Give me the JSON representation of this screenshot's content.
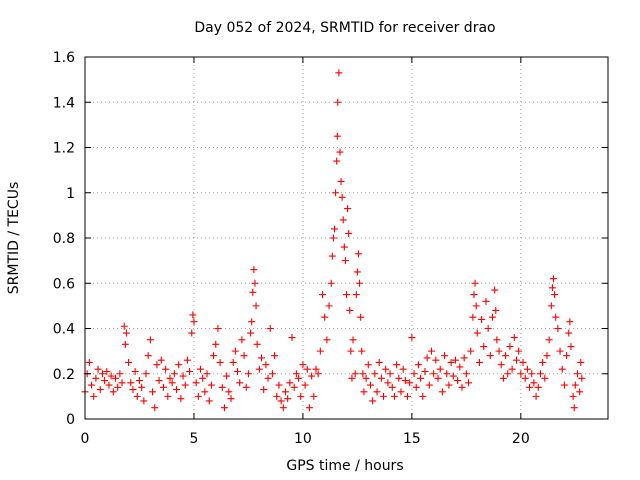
{
  "chart_data": {
    "type": "scatter",
    "title": "Day 052 of 2024, SRMTID for receiver drao",
    "xlabel": "GPS time / hours",
    "ylabel": "SRMTID / TECUs",
    "xlim": [
      0,
      24
    ],
    "ylim": [
      0,
      1.6
    ],
    "x_ticks": [
      0,
      5,
      10,
      15,
      20
    ],
    "y_ticks": [
      0,
      0.2,
      0.4,
      0.6,
      0.8,
      1,
      1.2,
      1.4,
      1.6
    ],
    "x_tick_labels": [
      "0",
      "5",
      "10",
      "15",
      "20"
    ],
    "y_tick_labels": [
      "0",
      "0.2",
      "0.4",
      "0.6",
      "0.8",
      "1",
      "1.2",
      "1.4",
      "1.6"
    ],
    "grid": true,
    "marker": "+",
    "point_color": "#ff0000",
    "series": [
      {
        "name": "SRMTID",
        "points": [
          [
            0.0,
            0.12
          ],
          [
            0.1,
            0.2
          ],
          [
            0.2,
            0.25
          ],
          [
            0.3,
            0.15
          ],
          [
            0.4,
            0.1
          ],
          [
            0.5,
            0.18
          ],
          [
            0.6,
            0.22
          ],
          [
            0.7,
            0.13
          ],
          [
            0.8,
            0.2
          ],
          [
            0.9,
            0.17
          ],
          [
            1.0,
            0.21
          ],
          [
            1.1,
            0.15
          ],
          [
            1.2,
            0.19
          ],
          [
            1.3,
            0.12
          ],
          [
            1.4,
            0.18
          ],
          [
            1.5,
            0.14
          ],
          [
            1.6,
            0.2
          ],
          [
            1.7,
            0.16
          ],
          [
            1.8,
            0.41
          ],
          [
            1.85,
            0.33
          ],
          [
            1.9,
            0.38
          ],
          [
            2.0,
            0.25
          ],
          [
            2.1,
            0.16
          ],
          [
            2.2,
            0.13
          ],
          [
            2.3,
            0.21
          ],
          [
            2.4,
            0.1
          ],
          [
            2.5,
            0.17
          ],
          [
            2.6,
            0.14
          ],
          [
            2.7,
            0.08
          ],
          [
            2.8,
            0.2
          ],
          [
            2.9,
            0.28
          ],
          [
            3.0,
            0.35
          ],
          [
            3.1,
            0.12
          ],
          [
            3.2,
            0.05
          ],
          [
            3.3,
            0.24
          ],
          [
            3.4,
            0.17
          ],
          [
            3.5,
            0.26
          ],
          [
            3.6,
            0.14
          ],
          [
            3.7,
            0.22
          ],
          [
            3.8,
            0.1
          ],
          [
            3.9,
            0.18
          ],
          [
            4.0,
            0.16
          ],
          [
            4.1,
            0.2
          ],
          [
            4.2,
            0.13
          ],
          [
            4.3,
            0.24
          ],
          [
            4.4,
            0.09
          ],
          [
            4.5,
            0.19
          ],
          [
            4.6,
            0.15
          ],
          [
            4.7,
            0.26
          ],
          [
            4.8,
            0.21
          ],
          [
            4.9,
            0.38
          ],
          [
            4.95,
            0.46
          ],
          [
            5.0,
            0.43
          ],
          [
            5.1,
            0.16
          ],
          [
            5.2,
            0.1
          ],
          [
            5.3,
            0.22
          ],
          [
            5.4,
            0.18
          ],
          [
            5.5,
            0.12
          ],
          [
            5.6,
            0.2
          ],
          [
            5.7,
            0.08
          ],
          [
            5.8,
            0.15
          ],
          [
            5.9,
            0.28
          ],
          [
            6.0,
            0.33
          ],
          [
            6.1,
            0.4
          ],
          [
            6.2,
            0.25
          ],
          [
            6.3,
            0.14
          ],
          [
            6.4,
            0.05
          ],
          [
            6.5,
            0.19
          ],
          [
            6.6,
            0.12
          ],
          [
            6.7,
            0.09
          ],
          [
            6.8,
            0.25
          ],
          [
            6.9,
            0.3
          ],
          [
            7.0,
            0.21
          ],
          [
            7.1,
            0.16
          ],
          [
            7.2,
            0.35
          ],
          [
            7.3,
            0.28
          ],
          [
            7.4,
            0.14
          ],
          [
            7.5,
            0.2
          ],
          [
            7.6,
            0.38
          ],
          [
            7.65,
            0.43
          ],
          [
            7.7,
            0.56
          ],
          [
            7.75,
            0.66
          ],
          [
            7.8,
            0.6
          ],
          [
            7.85,
            0.5
          ],
          [
            7.9,
            0.33
          ],
          [
            8.0,
            0.22
          ],
          [
            8.1,
            0.27
          ],
          [
            8.2,
            0.13
          ],
          [
            8.3,
            0.24
          ],
          [
            8.4,
            0.18
          ],
          [
            8.5,
            0.4
          ],
          [
            8.6,
            0.2
          ],
          [
            8.7,
            0.28
          ],
          [
            8.8,
            0.1
          ],
          [
            8.9,
            0.15
          ],
          [
            9.0,
            0.08
          ],
          [
            9.1,
            0.05
          ],
          [
            9.2,
            0.12
          ],
          [
            9.3,
            0.09
          ],
          [
            9.4,
            0.16
          ],
          [
            9.5,
            0.36
          ],
          [
            9.6,
            0.14
          ],
          [
            9.7,
            0.2
          ],
          [
            9.8,
            0.18
          ],
          [
            9.9,
            0.1
          ],
          [
            10.0,
            0.24
          ],
          [
            10.1,
            0.15
          ],
          [
            10.2,
            0.22
          ],
          [
            10.3,
            0.05
          ],
          [
            10.4,
            0.19
          ],
          [
            10.5,
            0.1
          ],
          [
            10.6,
            0.22
          ],
          [
            10.7,
            0.2
          ],
          [
            10.8,
            0.3
          ],
          [
            10.9,
            0.55
          ],
          [
            11.0,
            0.45
          ],
          [
            11.1,
            0.35
          ],
          [
            11.2,
            0.5
          ],
          [
            11.3,
            0.6
          ],
          [
            11.35,
            0.72
          ],
          [
            11.4,
            0.8
          ],
          [
            11.45,
            0.84
          ],
          [
            11.5,
            1.0
          ],
          [
            11.55,
            1.14
          ],
          [
            11.58,
            1.25
          ],
          [
            11.6,
            1.4
          ],
          [
            11.65,
            1.53
          ],
          [
            11.7,
            1.18
          ],
          [
            11.75,
            1.05
          ],
          [
            11.8,
            0.98
          ],
          [
            11.85,
            0.88
          ],
          [
            11.9,
            0.76
          ],
          [
            11.95,
            0.7
          ],
          [
            12.0,
            0.55
          ],
          [
            12.05,
            0.93
          ],
          [
            12.1,
            0.82
          ],
          [
            12.15,
            0.48
          ],
          [
            12.2,
            0.3
          ],
          [
            12.25,
            0.18
          ],
          [
            12.3,
            0.35
          ],
          [
            12.4,
            0.2
          ],
          [
            12.45,
            0.55
          ],
          [
            12.5,
            0.65
          ],
          [
            12.55,
            0.73
          ],
          [
            12.6,
            0.6
          ],
          [
            12.65,
            0.45
          ],
          [
            12.7,
            0.3
          ],
          [
            12.75,
            0.2
          ],
          [
            12.8,
            0.12
          ],
          [
            12.9,
            0.18
          ],
          [
            13.0,
            0.24
          ],
          [
            13.1,
            0.15
          ],
          [
            13.2,
            0.08
          ],
          [
            13.3,
            0.2
          ],
          [
            13.4,
            0.12
          ],
          [
            13.5,
            0.25
          ],
          [
            13.6,
            0.18
          ],
          [
            13.7,
            0.1
          ],
          [
            13.8,
            0.22
          ],
          [
            13.9,
            0.16
          ],
          [
            14.0,
            0.2
          ],
          [
            14.1,
            0.14
          ],
          [
            14.2,
            0.1
          ],
          [
            14.3,
            0.24
          ],
          [
            14.4,
            0.18
          ],
          [
            14.5,
            0.12
          ],
          [
            14.6,
            0.22
          ],
          [
            14.7,
            0.17
          ],
          [
            14.8,
            0.1
          ],
          [
            14.9,
            0.16
          ],
          [
            15.0,
            0.36
          ],
          [
            15.1,
            0.2
          ],
          [
            15.2,
            0.14
          ],
          [
            15.3,
            0.24
          ],
          [
            15.4,
            0.18
          ],
          [
            15.5,
            0.1
          ],
          [
            15.6,
            0.21
          ],
          [
            15.7,
            0.27
          ],
          [
            15.8,
            0.15
          ],
          [
            15.9,
            0.3
          ],
          [
            16.0,
            0.2
          ],
          [
            16.1,
            0.26
          ],
          [
            16.2,
            0.18
          ],
          [
            16.3,
            0.22
          ],
          [
            16.4,
            0.12
          ],
          [
            16.5,
            0.28
          ],
          [
            16.6,
            0.2
          ],
          [
            16.7,
            0.15
          ],
          [
            16.8,
            0.25
          ],
          [
            16.9,
            0.19
          ],
          [
            17.0,
            0.26
          ],
          [
            17.1,
            0.17
          ],
          [
            17.2,
            0.23
          ],
          [
            17.3,
            0.14
          ],
          [
            17.4,
            0.27
          ],
          [
            17.5,
            0.2
          ],
          [
            17.6,
            0.16
          ],
          [
            17.7,
            0.3
          ],
          [
            17.8,
            0.45
          ],
          [
            17.85,
            0.55
          ],
          [
            17.9,
            0.6
          ],
          [
            17.95,
            0.5
          ],
          [
            18.0,
            0.38
          ],
          [
            18.1,
            0.25
          ],
          [
            18.2,
            0.44
          ],
          [
            18.3,
            0.32
          ],
          [
            18.4,
            0.52
          ],
          [
            18.5,
            0.4
          ],
          [
            18.6,
            0.28
          ],
          [
            18.7,
            0.45
          ],
          [
            18.8,
            0.57
          ],
          [
            18.85,
            0.48
          ],
          [
            18.9,
            0.35
          ],
          [
            19.0,
            0.3
          ],
          [
            19.1,
            0.24
          ],
          [
            19.2,
            0.18
          ],
          [
            19.3,
            0.28
          ],
          [
            19.4,
            0.2
          ],
          [
            19.5,
            0.32
          ],
          [
            19.6,
            0.22
          ],
          [
            19.7,
            0.36
          ],
          [
            19.8,
            0.26
          ],
          [
            19.9,
            0.3
          ],
          [
            20.0,
            0.2
          ],
          [
            20.1,
            0.25
          ],
          [
            20.2,
            0.18
          ],
          [
            20.3,
            0.22
          ],
          [
            20.4,
            0.14
          ],
          [
            20.5,
            0.2
          ],
          [
            20.6,
            0.16
          ],
          [
            20.7,
            0.1
          ],
          [
            20.8,
            0.14
          ],
          [
            20.9,
            0.2
          ],
          [
            21.0,
            0.25
          ],
          [
            21.1,
            0.18
          ],
          [
            21.2,
            0.28
          ],
          [
            21.3,
            0.35
          ],
          [
            21.4,
            0.5
          ],
          [
            21.45,
            0.58
          ],
          [
            21.5,
            0.62
          ],
          [
            21.55,
            0.55
          ],
          [
            21.6,
            0.45
          ],
          [
            21.7,
            0.4
          ],
          [
            21.8,
            0.3
          ],
          [
            21.9,
            0.22
          ],
          [
            22.0,
            0.15
          ],
          [
            22.1,
            0.28
          ],
          [
            22.2,
            0.38
          ],
          [
            22.25,
            0.43
          ],
          [
            22.3,
            0.32
          ],
          [
            22.4,
            0.1
          ],
          [
            22.45,
            0.05
          ],
          [
            22.5,
            0.15
          ],
          [
            22.6,
            0.2
          ],
          [
            22.7,
            0.12
          ],
          [
            22.75,
            0.25
          ],
          [
            22.8,
            0.18
          ]
        ]
      }
    ]
  }
}
